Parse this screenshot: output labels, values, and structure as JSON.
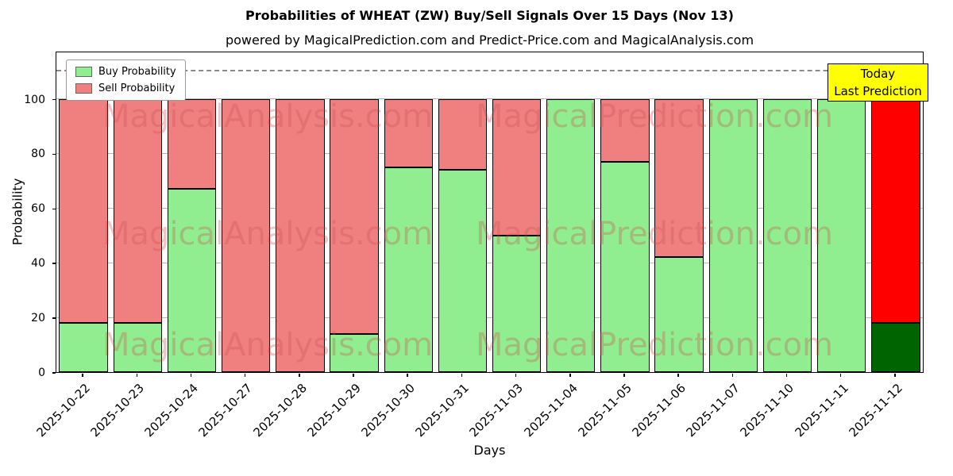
{
  "annotation": {
    "line1": "Today",
    "line2": "Last Prediction"
  },
  "watermark": {
    "left": "MagicalAnalysis.com",
    "right": "MagicalPrediction.com"
  },
  "chart_data": {
    "type": "bar",
    "stacked": true,
    "title": "Probabilities of WHEAT (ZW) Buy/Sell Signals Over 15 Days (Nov 13)",
    "subtitle": "powered by MagicalPrediction.com and Predict-Price.com and MagicalAnalysis.com",
    "xlabel": "Days",
    "ylabel": "Probability",
    "ylim": [
      0,
      117
    ],
    "y_ticks": [
      0,
      20,
      40,
      60,
      80,
      100
    ],
    "dashed_line_y": 110,
    "grid": true,
    "legend_position": "upper left",
    "categories": [
      "2025-10-22",
      "2025-10-23",
      "2025-10-24",
      "2025-10-27",
      "2025-10-28",
      "2025-10-29",
      "2025-10-30",
      "2025-10-31",
      "2025-11-03",
      "2025-11-04",
      "2025-11-05",
      "2025-11-06",
      "2025-11-07",
      "2025-11-10",
      "2025-11-11",
      "2025-11-12"
    ],
    "series": [
      {
        "name": "Buy Probability",
        "color": "#90EE90",
        "values": [
          18,
          18,
          67,
          0,
          0,
          14,
          75,
          74,
          50,
          100,
          77,
          42,
          100,
          100,
          100,
          18
        ]
      },
      {
        "name": "Sell Probability",
        "color": "#F08080",
        "values": [
          82,
          82,
          33,
          100,
          100,
          86,
          25,
          26,
          50,
          0,
          23,
          58,
          0,
          0,
          0,
          82
        ]
      }
    ],
    "today_bar": {
      "index": 15,
      "buy_color": "#006400",
      "sell_color": "#FF0000"
    }
  }
}
